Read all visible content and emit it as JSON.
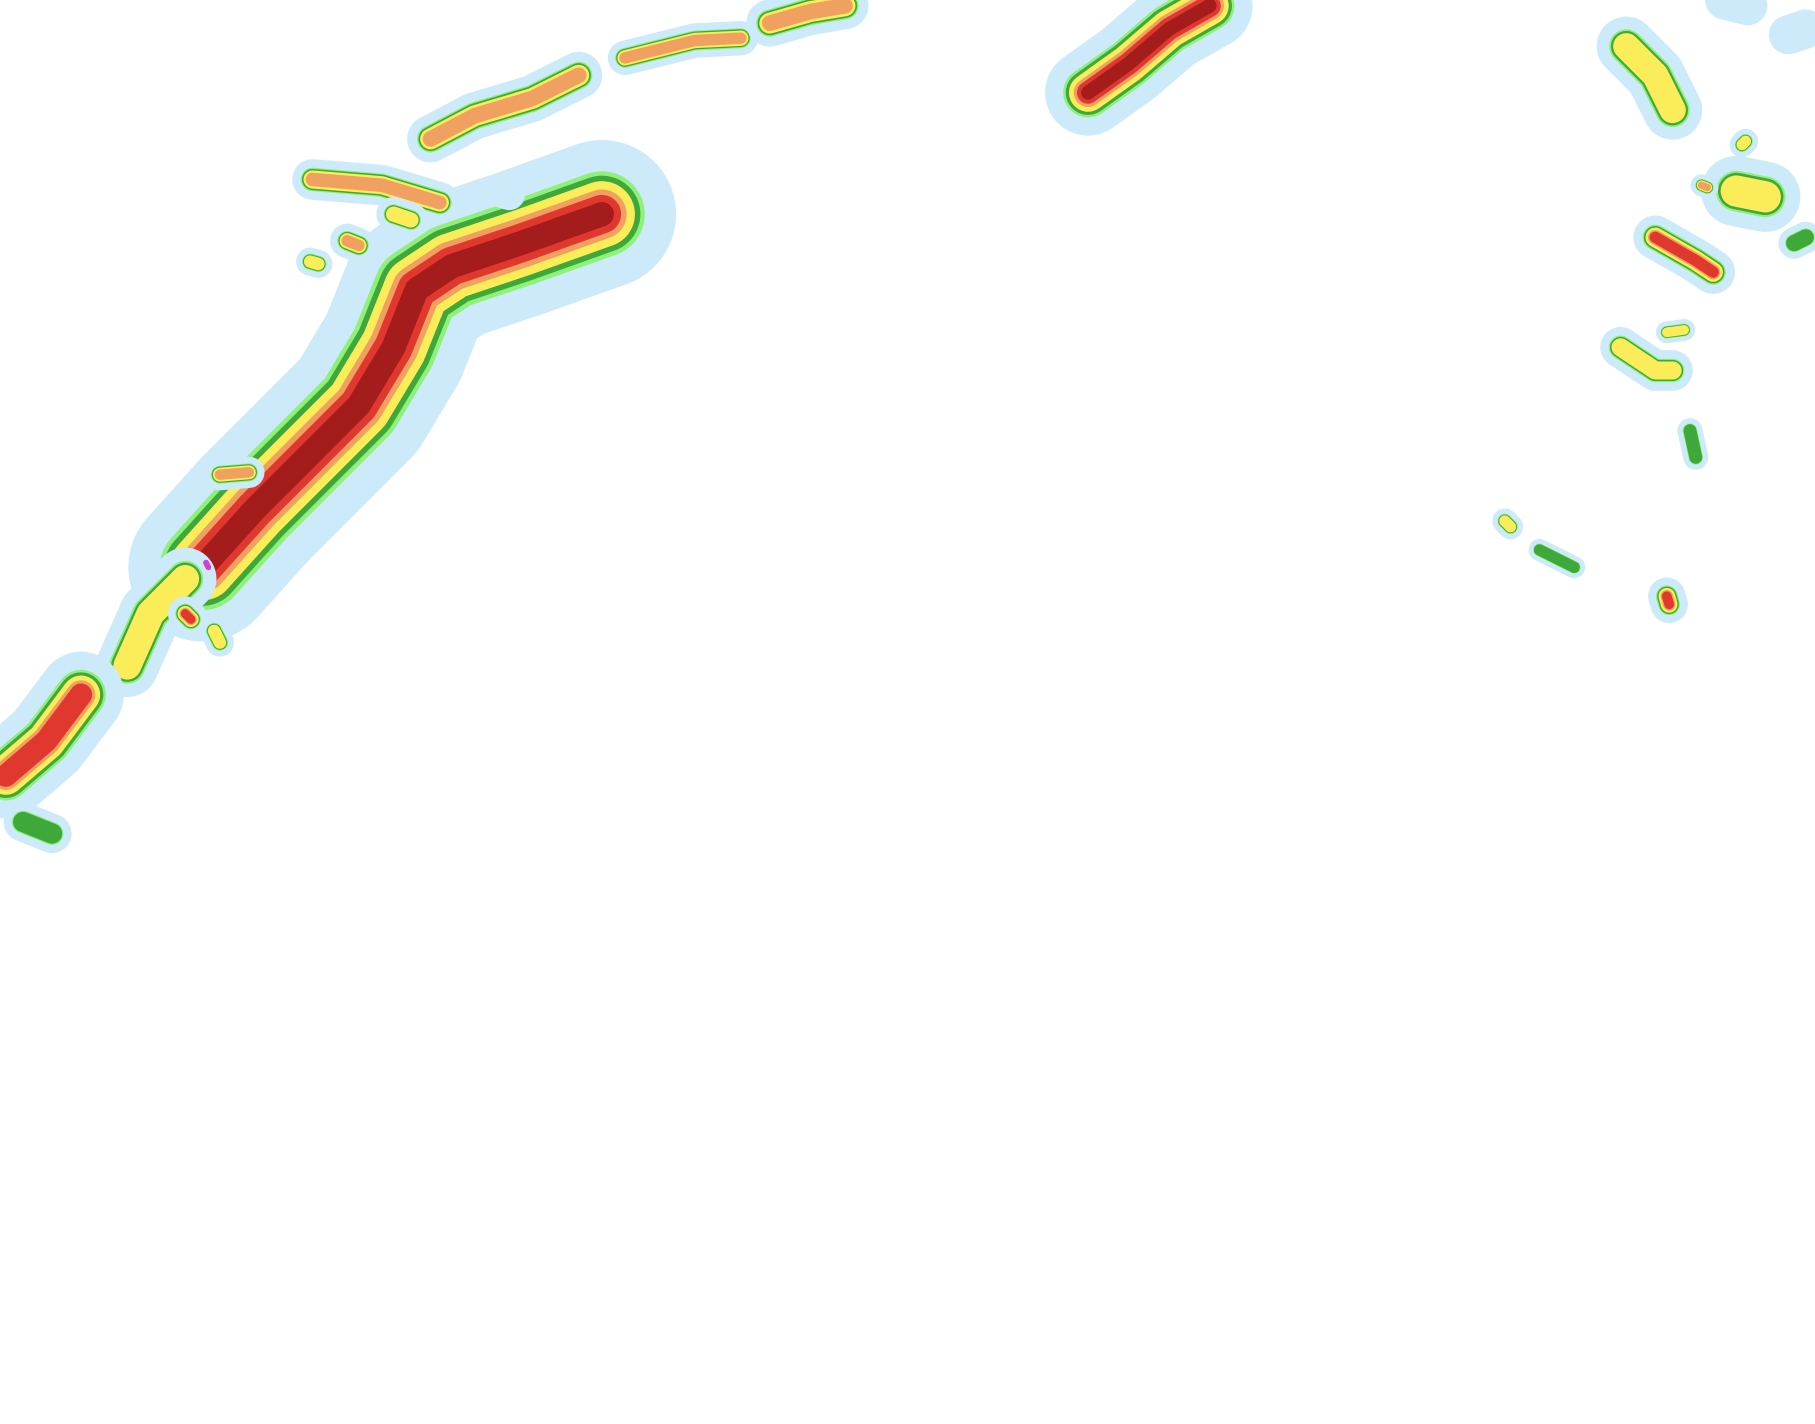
{
  "map": {
    "type": "weather-radar-reflectivity-overlay",
    "background": "#ffffff",
    "palette": {
      "very_light": "#cdeafb",
      "light": "#6cc0f0",
      "light_green": "#8ff07a",
      "green": "#3fa83a",
      "yellow": "#fbed5a",
      "orange": "#f0a060",
      "red": "#e0382e",
      "dark_red": "#a51c1c",
      "extreme": "#d040d0"
    }
  }
}
